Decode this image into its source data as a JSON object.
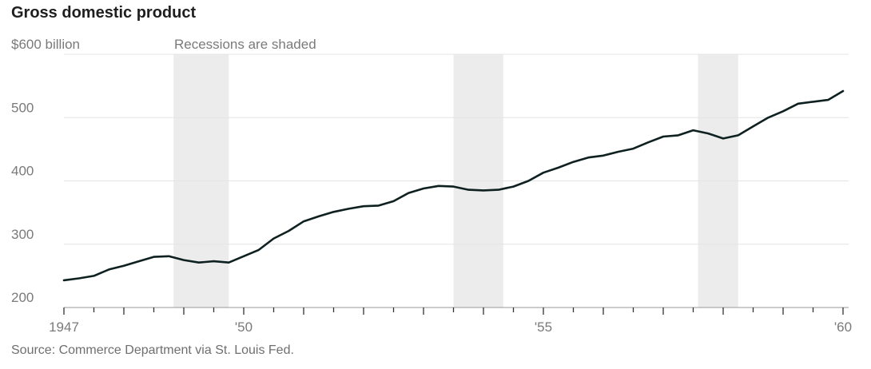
{
  "chart_data": {
    "type": "line",
    "title": "Gross domestic product",
    "annotation": "Recessions are shaded",
    "source": "Source: Commerce Department via St. Louis Fed.",
    "y_tick_labels": [
      "200",
      "300",
      "400",
      "500",
      "$600 billion"
    ],
    "y_ticks": [
      200,
      300,
      400,
      500,
      600
    ],
    "ylim": [
      200,
      600
    ],
    "xlim": [
      1947.0,
      1960.0
    ],
    "x_tick_labels": [
      {
        "x": 1947,
        "label": "1947"
      },
      {
        "x": 1950,
        "label": "'50"
      },
      {
        "x": 1955,
        "label": "'55"
      },
      {
        "x": 1960,
        "label": "'60"
      }
    ],
    "grid": true,
    "recessions": [
      [
        1948.83,
        1949.75
      ],
      [
        1953.5,
        1954.33
      ],
      [
        1957.58,
        1958.25
      ]
    ],
    "x": [
      1947.0,
      1947.25,
      1947.5,
      1947.75,
      1948.0,
      1948.25,
      1948.5,
      1948.75,
      1949.0,
      1949.25,
      1949.5,
      1949.75,
      1950.0,
      1950.25,
      1950.5,
      1950.75,
      1951.0,
      1951.25,
      1951.5,
      1951.75,
      1952.0,
      1952.25,
      1952.5,
      1952.75,
      1953.0,
      1953.25,
      1953.5,
      1953.75,
      1954.0,
      1954.25,
      1954.5,
      1954.75,
      1955.0,
      1955.25,
      1955.5,
      1955.75,
      1956.0,
      1956.25,
      1956.5,
      1956.75,
      1957.0,
      1957.25,
      1957.5,
      1957.75,
      1958.0,
      1958.25,
      1958.5,
      1958.75,
      1959.0,
      1959.25,
      1959.5,
      1959.75,
      1960.0
    ],
    "series": [
      {
        "values": [
          243,
          246,
          250,
          260,
          266,
          273,
          280,
          281,
          275,
          271,
          273,
          271,
          281,
          291,
          309,
          321,
          336,
          344,
          351,
          356,
          360,
          361,
          368,
          381,
          388,
          392,
          391,
          386,
          385,
          386,
          391,
          400,
          413,
          421,
          430,
          437,
          440,
          446,
          451,
          461,
          470,
          472,
          480,
          475,
          467,
          472,
          486,
          500,
          510,
          522,
          525,
          528,
          542
        ]
      }
    ]
  }
}
